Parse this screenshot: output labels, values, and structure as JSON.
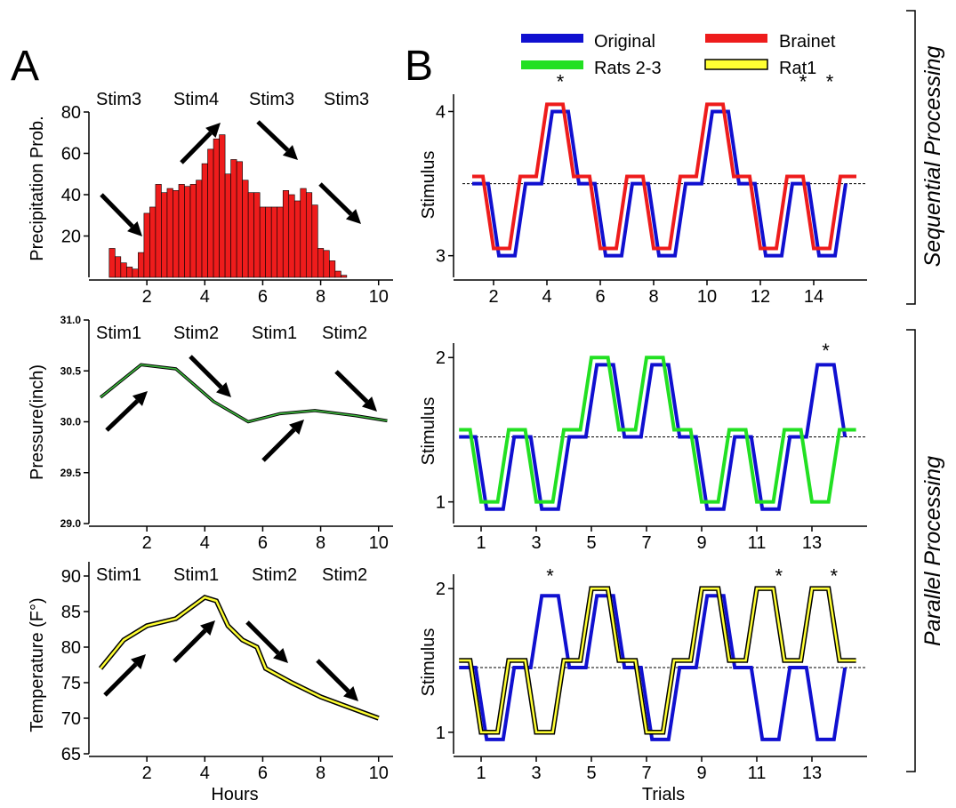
{
  "panel_labels": {
    "a": "A",
    "b": "B"
  },
  "legend": {
    "items": [
      {
        "label": "Original",
        "color": "#1010d0"
      },
      {
        "label": "Brainet",
        "color": "#ee1c1c"
      },
      {
        "label": "Rats 2-3",
        "color": "#22e022"
      },
      {
        "label": "Rat1",
        "color": "#ffff33"
      }
    ]
  },
  "side_labels": {
    "sequential": "Sequential Processing",
    "parallel": "Parallel Processing"
  },
  "chart_data": [
    {
      "id": "a1",
      "type": "bar",
      "ylabel": "Precipitation Prob.",
      "xlim": [
        0,
        10.5
      ],
      "ylim": [
        0,
        80
      ],
      "xticks": [
        2,
        4,
        6,
        8,
        10
      ],
      "yticks": [
        20,
        40,
        60,
        80
      ],
      "color": "#ee1c1c",
      "bar_width": 0.2,
      "x": [
        0.8,
        1.0,
        1.2,
        1.4,
        1.6,
        1.8,
        2.0,
        2.2,
        2.4,
        2.6,
        2.8,
        3.0,
        3.2,
        3.4,
        3.6,
        3.8,
        4.0,
        4.2,
        4.4,
        4.6,
        4.8,
        5.0,
        5.2,
        5.4,
        5.6,
        5.8,
        6.0,
        6.2,
        6.4,
        6.6,
        6.8,
        7.0,
        7.2,
        7.4,
        7.6,
        7.8,
        8.0,
        8.2,
        8.4,
        8.6,
        8.8
      ],
      "values": [
        14,
        10,
        7,
        5,
        4,
        12,
        31,
        34,
        45,
        41,
        43,
        42,
        45,
        44,
        45,
        47,
        55,
        62,
        67,
        69,
        50,
        57,
        56,
        47,
        41,
        41,
        34,
        34,
        34,
        34,
        42,
        40,
        37,
        43,
        41,
        35,
        14,
        13,
        8,
        3,
        1
      ],
      "stim_labels": [
        "Stim3",
        "Stim4",
        "Stim3",
        "Stim3"
      ]
    },
    {
      "id": "a2",
      "type": "line",
      "ylabel": "Pressure(inch)",
      "xlim": [
        0,
        10.5
      ],
      "ylim": [
        29.0,
        31.0
      ],
      "xticks": [
        2,
        4,
        6,
        8,
        10
      ],
      "yticks": [
        29.0,
        29.5,
        30.0,
        30.5,
        31.0
      ],
      "ytick_labels": [
        "29.0",
        "29.5",
        "30.0",
        "30.5",
        "31.0"
      ],
      "series": [
        {
          "color": "#1e7a1e",
          "x": [
            0.4,
            1.8,
            3,
            4.3,
            5.5,
            6.6,
            7.8,
            9.2,
            10.3
          ],
          "values": [
            30.24,
            30.56,
            30.52,
            30.2,
            30.0,
            30.08,
            30.11,
            30.06,
            30.01
          ]
        }
      ],
      "stim_labels": [
        "Stim1",
        "Stim2",
        "Stim1",
        "Stim2"
      ]
    },
    {
      "id": "a3",
      "type": "line",
      "ylabel": "Temperature (F°)",
      "xlabel": "Hours",
      "xlim": [
        0,
        10.5
      ],
      "ylim": [
        65,
        92
      ],
      "xticks": [
        2,
        4,
        6,
        8,
        10
      ],
      "yticks": [
        65,
        70,
        75,
        80,
        85,
        90
      ],
      "series": [
        {
          "color": "#ffff33",
          "x": [
            0.4,
            1.2,
            2,
            3,
            4,
            4.4,
            4.8,
            5.3,
            5.8,
            6.1,
            7,
            8,
            10
          ],
          "values": [
            77,
            81,
            83,
            84,
            87,
            86.5,
            83,
            81,
            80,
            77,
            75,
            73,
            70
          ]
        }
      ],
      "stim_labels": [
        "Stim1",
        "Stim1",
        "Stim2",
        "Stim2"
      ]
    },
    {
      "id": "b1",
      "type": "line",
      "ylabel": "Stimulus",
      "xlim": [
        0.5,
        16
      ],
      "ylim": [
        2.85,
        4.12
      ],
      "xticks": [
        2,
        4,
        6,
        8,
        10,
        12,
        14
      ],
      "yticks": [
        3,
        4
      ],
      "reference_y": 3.5,
      "series": [
        {
          "name": "Original",
          "color": "#1010d0",
          "x": [
            1.2,
            1.8,
            2.2,
            2.8,
            3.2,
            3.8,
            4.2,
            4.8,
            5.2,
            5.8,
            6.2,
            6.8,
            7.2,
            7.8,
            8.2,
            8.8,
            9.2,
            9.8,
            10.2,
            10.8,
            11.2,
            11.8,
            12.2,
            12.8,
            13.2,
            13.8,
            14.2,
            14.8,
            15.2
          ],
          "values": [
            3.5,
            3.5,
            3.0,
            3.0,
            3.5,
            3.5,
            4.0,
            4.0,
            3.5,
            3.5,
            3.0,
            3.0,
            3.5,
            3.5,
            3.0,
            3.0,
            3.5,
            3.5,
            4.0,
            4.0,
            3.5,
            3.5,
            3.0,
            3.0,
            3.5,
            3.5,
            3.0,
            3.0,
            3.5
          ]
        },
        {
          "name": "Brainet",
          "color": "#ee1c1c",
          "x": [
            1.2,
            1.6,
            2.0,
            2.6,
            3.0,
            3.6,
            4.0,
            4.6,
            5.0,
            5.6,
            6.0,
            6.6,
            7.0,
            7.6,
            8.0,
            8.6,
            9.0,
            9.6,
            10.0,
            10.6,
            11.0,
            11.6,
            12.0,
            12.6,
            13.0,
            13.6,
            14.0,
            14.6,
            15.0,
            15.6
          ],
          "values": [
            3.55,
            3.55,
            3.05,
            3.05,
            3.55,
            3.55,
            4.05,
            4.05,
            3.55,
            3.55,
            3.05,
            3.05,
            3.55,
            3.55,
            3.05,
            3.05,
            3.55,
            3.55,
            4.05,
            4.05,
            3.55,
            3.55,
            3.05,
            3.05,
            3.55,
            3.55,
            3.05,
            3.05,
            3.55,
            3.55
          ]
        }
      ],
      "stars": [
        {
          "x": 4.5,
          "y": 4.16
        },
        {
          "x": 13.6,
          "y": 4.16
        },
        {
          "x": 14.6,
          "y": 4.16
        }
      ]
    },
    {
      "id": "b2",
      "type": "line",
      "ylabel": "Stimulus",
      "xlim": [
        0,
        15
      ],
      "ylim": [
        0.85,
        2.1
      ],
      "xticks": [
        1,
        3,
        5,
        7,
        9,
        11,
        13
      ],
      "yticks": [
        1,
        2
      ],
      "reference_y": 1.45,
      "series": [
        {
          "name": "Original",
          "color": "#1010d0",
          "x": [
            0.2,
            0.8,
            1.2,
            1.8,
            2.2,
            2.8,
            3.2,
            3.8,
            4.2,
            4.8,
            5.2,
            5.8,
            6.2,
            6.8,
            7.2,
            7.8,
            8.2,
            8.8,
            9.2,
            9.8,
            10.2,
            10.8,
            11.2,
            11.8,
            12.2,
            12.8,
            13.2,
            13.8,
            14.2
          ],
          "values": [
            1.45,
            1.45,
            0.95,
            0.95,
            1.45,
            1.45,
            0.95,
            0.95,
            1.45,
            1.45,
            1.95,
            1.95,
            1.45,
            1.45,
            1.95,
            1.95,
            1.45,
            1.45,
            0.95,
            0.95,
            1.45,
            1.45,
            0.95,
            0.95,
            1.45,
            1.45,
            1.95,
            1.95,
            1.45
          ]
        },
        {
          "name": "Rats 2-3",
          "color": "#22e022",
          "x": [
            0.2,
            0.6,
            1.0,
            1.6,
            2.0,
            2.6,
            3.0,
            3.6,
            4.0,
            4.6,
            5.0,
            5.6,
            6.0,
            6.6,
            7.0,
            7.6,
            8.0,
            8.6,
            9.0,
            9.6,
            10.0,
            10.6,
            11.0,
            11.6,
            12.0,
            12.6,
            13.0,
            13.6,
            14.0,
            14.6
          ],
          "values": [
            1.5,
            1.5,
            1.0,
            1.0,
            1.5,
            1.5,
            1.0,
            1.0,
            1.5,
            1.5,
            2.0,
            2.0,
            1.5,
            1.5,
            2.0,
            2.0,
            1.5,
            1.5,
            1.0,
            1.0,
            1.5,
            1.5,
            1.0,
            1.0,
            1.5,
            1.5,
            1.0,
            1.0,
            1.5,
            1.5
          ]
        }
      ],
      "stars": [
        {
          "x": 13.5,
          "y": 2.0
        }
      ]
    },
    {
      "id": "b3",
      "type": "line",
      "ylabel": "Stimulus",
      "xlabel": "Trials",
      "xlim": [
        0,
        15
      ],
      "ylim": [
        0.85,
        2.1
      ],
      "xticks": [
        1,
        3,
        5,
        7,
        9,
        11,
        13
      ],
      "yticks": [
        1,
        2
      ],
      "reference_y": 1.45,
      "series": [
        {
          "name": "Original",
          "color": "#1010d0",
          "x": [
            0.2,
            0.8,
            1.2,
            1.8,
            2.2,
            2.8,
            3.2,
            3.8,
            4.2,
            4.8,
            5.2,
            5.8,
            6.2,
            6.8,
            7.2,
            7.8,
            8.2,
            8.8,
            9.2,
            9.8,
            10.2,
            10.8,
            11.2,
            11.8,
            12.2,
            12.8,
            13.2,
            13.8,
            14.2
          ],
          "values": [
            1.45,
            1.45,
            0.95,
            0.95,
            1.45,
            1.45,
            1.95,
            1.95,
            1.45,
            1.45,
            1.95,
            1.95,
            1.45,
            1.45,
            0.95,
            0.95,
            1.45,
            1.45,
            1.95,
            1.95,
            1.45,
            1.45,
            0.95,
            0.95,
            1.45,
            1.45,
            0.95,
            0.95,
            1.45
          ]
        },
        {
          "name": "Rat1",
          "color": "#ffff33",
          "x": [
            0.2,
            0.6,
            1.0,
            1.6,
            2.0,
            2.6,
            3.0,
            3.6,
            4.0,
            4.6,
            5.0,
            5.6,
            6.0,
            6.6,
            7.0,
            7.6,
            8.0,
            8.6,
            9.0,
            9.6,
            10.0,
            10.6,
            11.0,
            11.6,
            12.0,
            12.6,
            13.0,
            13.6,
            14.0,
            14.6
          ],
          "values": [
            1.5,
            1.5,
            1.0,
            1.0,
            1.5,
            1.5,
            1.0,
            1.0,
            1.5,
            1.5,
            2.0,
            2.0,
            1.5,
            1.5,
            1.0,
            1.0,
            1.5,
            1.5,
            2.0,
            2.0,
            1.5,
            1.5,
            2.0,
            2.0,
            1.5,
            1.5,
            2.0,
            2.0,
            1.5,
            1.5
          ]
        }
      ],
      "stars": [
        {
          "x": 3.5,
          "y": 2.04
        },
        {
          "x": 11.8,
          "y": 2.04
        },
        {
          "x": 13.8,
          "y": 2.04
        }
      ]
    }
  ]
}
